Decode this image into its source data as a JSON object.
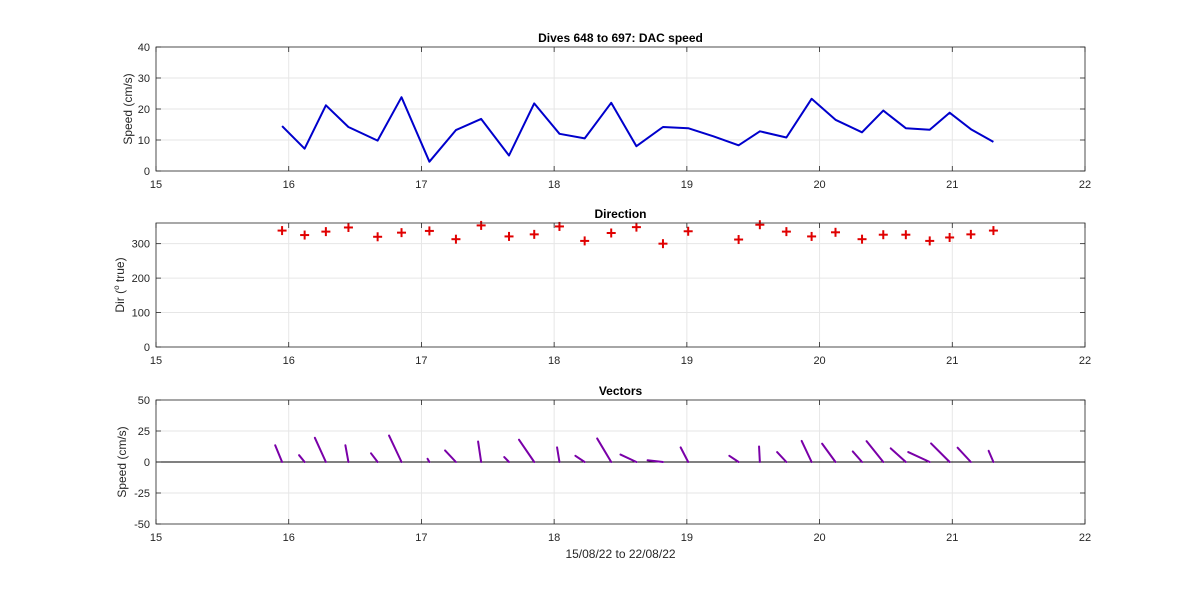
{
  "colors": {
    "speed_line": "#0000cc",
    "direction_marker": "#e00000",
    "vectors": "#7a00a8",
    "axis": "#262626",
    "grid": "#e6e6e6"
  },
  "chart_data": [
    {
      "type": "line",
      "title": "Dives 648 to 697: DAC speed",
      "xlabel": "",
      "ylabel": "Speed (cm/s)",
      "xlim": [
        15,
        22
      ],
      "ylim": [
        0,
        40
      ],
      "xticks": [
        "15",
        "16",
        "17",
        "18",
        "19",
        "20",
        "21",
        "22"
      ],
      "yticks": [
        "0",
        "10",
        "20",
        "30",
        "40"
      ],
      "grid": true,
      "series": [
        {
          "x": [
            15.95,
            16.12,
            16.28,
            16.45,
            16.67,
            16.85,
            17.06,
            17.26,
            17.45,
            17.66,
            17.85,
            18.04,
            18.23,
            18.43,
            18.62,
            18.82,
            19.01,
            19.2,
            19.39,
            19.55,
            19.75,
            19.94,
            20.12,
            20.32,
            20.48,
            20.65,
            20.83,
            20.98,
            21.14,
            21.31
          ],
          "y": [
            14.5,
            7.2,
            21.2,
            14.2,
            9.8,
            23.8,
            3.0,
            13.2,
            16.8,
            5.0,
            21.8,
            12.0,
            10.5,
            22.0,
            8.0,
            14.2,
            13.8,
            11.2,
            8.3,
            12.8,
            10.8,
            23.3,
            16.5,
            12.5,
            19.5,
            13.8,
            13.3,
            18.8,
            13.5,
            9.4
          ]
        }
      ]
    },
    {
      "type": "scatter",
      "title": "Direction",
      "xlabel": "",
      "ylabel_main": "Dir (",
      "ylabel_sup": "o",
      "ylabel_tail": " true)",
      "xlim": [
        15,
        22
      ],
      "ylim": [
        0,
        360
      ],
      "xticks": [
        "15",
        "16",
        "17",
        "18",
        "19",
        "20",
        "21",
        "22"
      ],
      "yticks": [
        "0",
        "100",
        "200",
        "300"
      ],
      "yticks_values": [
        0,
        100,
        200,
        300
      ],
      "grid": true,
      "marker": "+",
      "series": [
        {
          "x": [
            15.95,
            16.12,
            16.28,
            16.45,
            16.67,
            16.85,
            17.06,
            17.26,
            17.45,
            17.66,
            17.85,
            18.04,
            18.23,
            18.43,
            18.62,
            18.82,
            19.01,
            19.39,
            19.55,
            19.75,
            19.94,
            20.12,
            20.32,
            20.48,
            20.65,
            20.83,
            20.98,
            21.14,
            21.31
          ],
          "y": [
            338,
            325,
            335,
            347,
            320,
            332,
            337,
            313,
            353,
            321,
            327,
            350,
            308,
            331,
            348,
            300,
            336,
            312,
            355,
            335,
            321,
            333,
            313,
            326,
            326,
            308,
            318,
            327,
            338
          ]
        }
      ]
    },
    {
      "type": "vector",
      "title": "Vectors",
      "xlabel": "15/08/22 to 22/08/22",
      "ylabel": "Speed (cm/s)",
      "xlim": [
        15,
        22
      ],
      "ylim": [
        -50,
        50
      ],
      "xticks": [
        "15",
        "16",
        "17",
        "18",
        "19",
        "20",
        "21",
        "22"
      ],
      "yticks": [
        "-50",
        "-25",
        "0",
        "25",
        "50"
      ],
      "yticks_values": [
        -50,
        -25,
        0,
        25,
        50
      ],
      "grid": true,
      "series": [
        {
          "x": [
            15.95,
            16.12,
            16.28,
            16.45,
            16.67,
            16.85,
            17.06,
            17.26,
            17.45,
            17.66,
            17.85,
            18.04,
            18.23,
            18.43,
            18.62,
            18.82,
            19.01,
            19.39,
            19.55,
            19.75,
            19.94,
            20.12,
            20.32,
            20.48,
            20.65,
            20.83,
            20.98,
            21.14,
            21.31
          ],
          "u": [
            -5.2,
            -4.2,
            -8.3,
            -2.3,
            -5.0,
            -9.4,
            -1.4,
            -8.2,
            -2.3,
            -3.6,
            -11.5,
            -1.8,
            -7.0,
            -10.6,
            -12.0,
            -11.6,
            -5.7,
            -7.0,
            -0.6,
            -7.0,
            -7.5,
            -10.1,
            -7.0,
            -12.6,
            -11.4,
            -16.2,
            -14.0,
            -10.0,
            -3.6
          ],
          "v": [
            13.5,
            5.5,
            19.5,
            13.5,
            7.0,
            21.3,
            2.6,
            9.3,
            16.5,
            4.0,
            18.0,
            11.8,
            5.0,
            19.0,
            6.0,
            1.4,
            11.8,
            5.0,
            12.5,
            8.0,
            17.0,
            14.8,
            8.5,
            16.8,
            11.0,
            8.0,
            15.0,
            11.5,
            9.0
          ]
        }
      ]
    }
  ]
}
